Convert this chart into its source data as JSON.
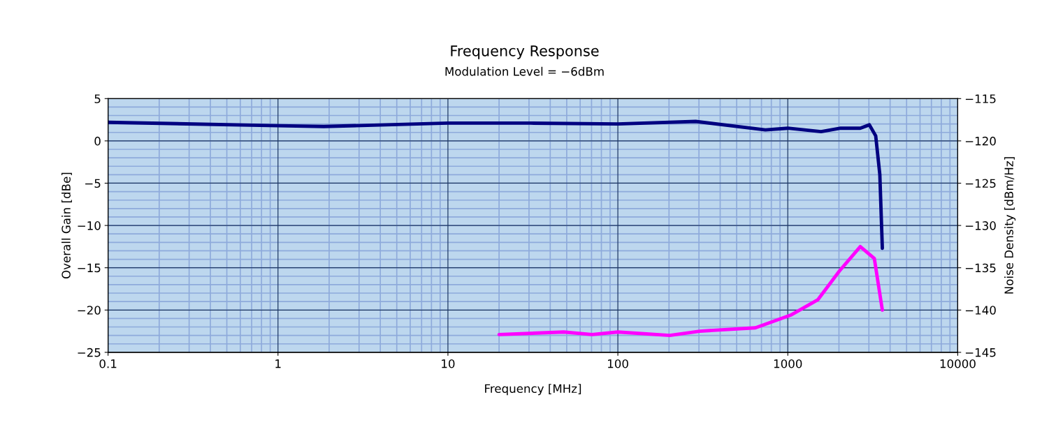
{
  "chart_data": {
    "type": "line",
    "title": "Frequency Response",
    "subtitle": "Modulation Level = −6dBm",
    "xlabel": "Frequency [MHz]",
    "ylabel": "Overall Gain [dBe]",
    "y2label": "Noise Density [dBm/Hz]",
    "log": "x",
    "grid": true,
    "marker": "none",
    "line_style": "solid",
    "xlim": [
      0.1,
      10000
    ],
    "xticks": [
      0.1,
      1,
      10,
      100,
      1000,
      10000
    ],
    "ylim": [
      -25,
      5
    ],
    "yticks": [
      {
        "value": -25,
        "label": "−25"
      },
      {
        "value": -20,
        "label": "−20"
      },
      {
        "value": -15,
        "label": "−15"
      },
      {
        "value": -10,
        "label": "−10"
      },
      {
        "value": -5,
        "label": "−5"
      },
      0,
      5
    ],
    "y2lim": [
      -145,
      -115
    ],
    "y2ticks": [
      {
        "value": -145,
        "label": "−145"
      },
      {
        "value": -140,
        "label": "−140"
      },
      {
        "value": -135,
        "label": "−135"
      },
      {
        "value": -130,
        "label": "−130"
      },
      {
        "value": -125,
        "label": "−125"
      },
      {
        "value": -120,
        "label": "−120"
      },
      {
        "value": -115,
        "label": "−115"
      }
    ],
    "series": [
      {
        "color": "#000080",
        "x": [
          0.1,
          1,
          1.86,
          10,
          30.7,
          100,
          287,
          738,
          1000,
          1570,
          2046,
          2670,
          3020,
          3290,
          3480,
          3600
        ],
        "values": [
          2.2,
          1.8,
          1.7,
          2.1,
          2.1,
          2.0,
          2.3,
          1.3,
          1.5,
          1.1,
          1.5,
          1.5,
          1.9,
          0.6,
          -4,
          -12.7
        ]
      },
      {
        "color": "#ff00ff",
        "axis": "y2",
        "x": [
          20,
          48,
          70.5,
          100,
          202,
          303,
          645,
          1040,
          1500,
          2010,
          2670,
          3230,
          3600
        ],
        "values": [
          -142.9,
          -142.6,
          -142.9,
          -142.6,
          -143.0,
          -142.5,
          -142.1,
          -140.6,
          -138.8,
          -135.4,
          -132.5,
          -133.9,
          -140
        ]
      }
    ]
  }
}
